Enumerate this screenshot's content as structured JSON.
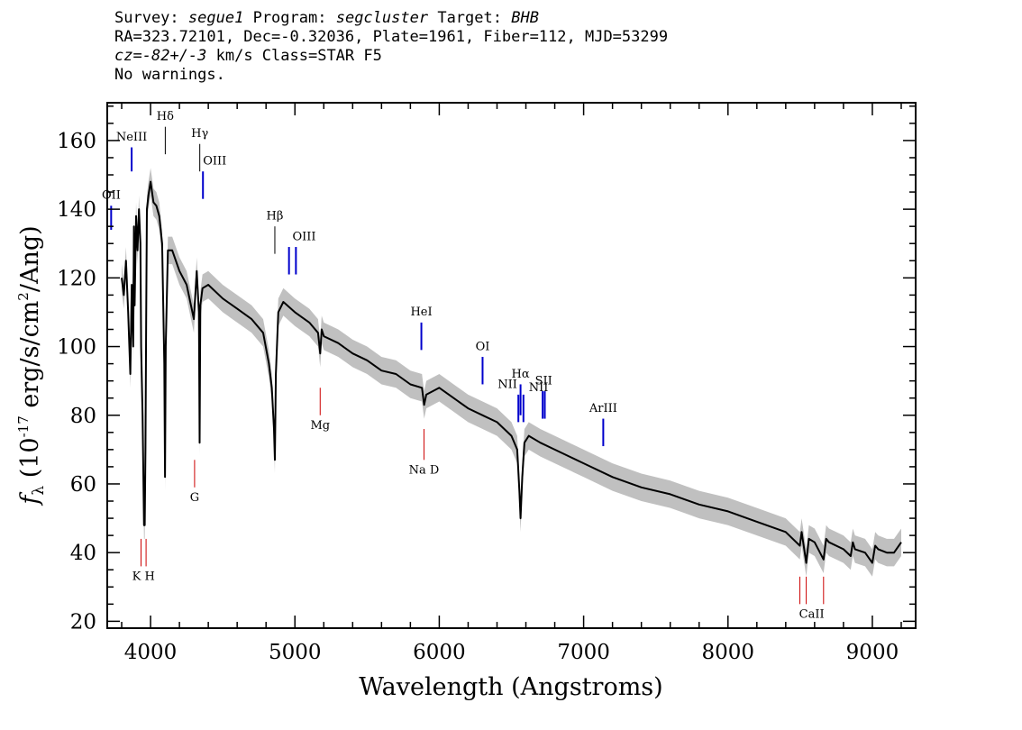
{
  "header": {
    "survey_label": "Survey:",
    "survey": "segue1",
    "program_label": "Program:",
    "program": "segcluster",
    "target_label": "Target:",
    "target": "BHB",
    "line2": "RA=323.72101, Dec=-0.32036, Plate=1961, Fiber=112, MJD=53299",
    "cz_var": "cz",
    "cz_eq": "=",
    "cz_val": "-82+/-3",
    "cz_rest": " km/s Class=STAR F5",
    "warnings": "No warnings."
  },
  "colors": {
    "emission": "#0000cc",
    "absorption": "#cc0000",
    "balmer": "#000000",
    "spectrum": "#000000",
    "error": "#c0c0c0"
  },
  "chart_data": {
    "type": "line",
    "xlabel": "Wavelength (Angstroms)",
    "ylabel_prefix": "f",
    "ylabel_sub": "λ",
    "ylabel_rest": " (10",
    "ylabel_exp": "-17",
    "ylabel_units": " erg/s/cm",
    "ylabel_sq": "2",
    "ylabel_end": "/Ang)",
    "xlim": [
      3700,
      9300
    ],
    "ylim": [
      18,
      171
    ],
    "xticks": [
      4000,
      5000,
      6000,
      7000,
      8000,
      9000
    ],
    "xtick_labels": [
      "4000",
      "5000",
      "6000",
      "7000",
      "8000",
      "9000"
    ],
    "yticks": [
      20,
      40,
      60,
      80,
      100,
      120,
      140,
      160
    ],
    "ytick_labels": [
      "20",
      "40",
      "60",
      "80",
      "100",
      "120",
      "140",
      "160"
    ],
    "series": [
      {
        "kind": "flux",
        "x": [
          3800,
          3815,
          3830,
          3845,
          3860,
          3870,
          3880,
          3885,
          3890,
          3900,
          3910,
          3920,
          3930,
          3935,
          3945,
          3955,
          3960,
          3965,
          3970,
          3975,
          3985,
          4000,
          4020,
          4040,
          4060,
          4080,
          4095,
          4100,
          4105,
          4120,
          4150,
          4200,
          4250,
          4300,
          4320,
          4335,
          4340,
          4345,
          4360,
          4400,
          4500,
          4600,
          4700,
          4780,
          4820,
          4840,
          4855,
          4861,
          4868,
          4885,
          4920,
          5000,
          5100,
          5160,
          5175,
          5185,
          5200,
          5300,
          5400,
          5500,
          5600,
          5700,
          5800,
          5880,
          5895,
          5910,
          6000,
          6100,
          6200,
          6300,
          6400,
          6500,
          6540,
          6555,
          6563,
          6575,
          6590,
          6620,
          6700,
          6800,
          7000,
          7200,
          7400,
          7600,
          7800,
          8000,
          8200,
          8400,
          8498,
          8510,
          8542,
          8560,
          8600,
          8662,
          8680,
          8700,
          8800,
          8850,
          8865,
          8880,
          8950,
          9000,
          9020,
          9040,
          9100,
          9150,
          9200
        ],
        "y": [
          120,
          115,
          125,
          110,
          92,
          118,
          100,
          135,
          112,
          138,
          128,
          140,
          130,
          100,
          80,
          48,
          48,
          70,
          108,
          140,
          144,
          148,
          142,
          141,
          138,
          130,
          95,
          62,
          100,
          128,
          128,
          122,
          118,
          108,
          122,
          110,
          72,
          112,
          117,
          118,
          114,
          111,
          108,
          104,
          95,
          88,
          76,
          67,
          92,
          110,
          113,
          110,
          107,
          104,
          98,
          105,
          103,
          101,
          98,
          96,
          93,
          92,
          89,
          88,
          83,
          86,
          88,
          85,
          82,
          80,
          78,
          74,
          70,
          58,
          50,
          62,
          72,
          74,
          72,
          70,
          66,
          62,
          59,
          57,
          54,
          52,
          49,
          46,
          42,
          46,
          37,
          44,
          43,
          38,
          44,
          43,
          41,
          39,
          43,
          41,
          40,
          37,
          42,
          41,
          40,
          40,
          43
        ]
      },
      {
        "kind": "error",
        "offset": 4
      }
    ],
    "emission_lines": [
      {
        "label": "OII",
        "x": 3727,
        "y_top": 134,
        "y_bot": 141
      },
      {
        "label": "NeIII",
        "x": 3869,
        "y_top": 151,
        "y_bot": 158
      },
      {
        "label": "OIII",
        "x": 4363,
        "y_top": 143,
        "y_bot": 151
      },
      {
        "label": "OIII",
        "x": 4959,
        "y_top": 121,
        "y_bot": 129
      },
      {
        "label": "OIII",
        "x": 5007,
        "y_top": 121,
        "y_bot": 129
      },
      {
        "label": "HeI",
        "x": 5876,
        "y_top": 99,
        "y_bot": 107
      },
      {
        "label": "OI",
        "x": 6300,
        "y_top": 89,
        "y_bot": 97
      },
      {
        "label": "NII",
        "x": 6548,
        "y_top": 78,
        "y_bot": 86
      },
      {
        "label": "Hα",
        "x": 6563,
        "y_top": 80,
        "y_bot": 89
      },
      {
        "label": "NII",
        "x": 6583,
        "y_top": 78,
        "y_bot": 86
      },
      {
        "label": "SII",
        "x": 6716,
        "y_top": 79,
        "y_bot": 87
      },
      {
        "label": "SII",
        "x": 6731,
        "y_top": 79,
        "y_bot": 87
      },
      {
        "label": "ArIII",
        "x": 7136,
        "y_top": 71,
        "y_bot": 79
      }
    ],
    "balmer_lines": [
      {
        "label": "Hδ",
        "x": 4102,
        "y_top": 156,
        "y_bot": 164
      },
      {
        "label": "Hγ",
        "x": 4341,
        "y_top": 151,
        "y_bot": 159
      },
      {
        "label": "Hβ",
        "x": 4861,
        "y_top": 127,
        "y_bot": 135
      }
    ],
    "absorption_lines": [
      {
        "label": "K",
        "x": 3934,
        "y_top": 36,
        "y_bot": 44
      },
      {
        "label": "H",
        "x": 3969,
        "y_top": 36,
        "y_bot": 44
      },
      {
        "label": "G",
        "x": 4305,
        "y_top": 59,
        "y_bot": 67
      },
      {
        "label": "Mg",
        "x": 5175,
        "y_top": 80,
        "y_bot": 88
      },
      {
        "label": "Na D",
        "x": 5894,
        "y_top": 67,
        "y_bot": 76
      },
      {
        "label": "CaII",
        "x": 8498,
        "y_top": 25,
        "y_bot": 33
      },
      {
        "label": "CaII",
        "x": 8542,
        "y_top": 25,
        "y_bot": 33
      },
      {
        "label": "CaII",
        "x": 8662,
        "y_top": 25,
        "y_bot": 33
      }
    ],
    "line_labels": [
      {
        "text": "OII",
        "x": 3728,
        "y": 143,
        "anchor": "middle"
      },
      {
        "text": "NeIII",
        "x": 3869,
        "y": 160,
        "anchor": "middle"
      },
      {
        "text": "Hδ",
        "x": 4102,
        "y": 166,
        "anchor": "middle"
      },
      {
        "text": "Hγ",
        "x": 4341,
        "y": 161,
        "anchor": "middle"
      },
      {
        "text": "OIII",
        "x": 4363,
        "y": 153,
        "anchor": "start"
      },
      {
        "text": "Hβ",
        "x": 4861,
        "y": 137,
        "anchor": "middle"
      },
      {
        "text": "OIII",
        "x": 4983,
        "y": 131,
        "anchor": "start"
      },
      {
        "text": "HeI",
        "x": 5876,
        "y": 109,
        "anchor": "middle"
      },
      {
        "text": "OI",
        "x": 6300,
        "y": 99,
        "anchor": "middle"
      },
      {
        "text": "NII",
        "x": 6540,
        "y": 88,
        "anchor": "end"
      },
      {
        "text": "Hα",
        "x": 6563,
        "y": 91,
        "anchor": "middle"
      },
      {
        "text": "NII",
        "x": 6620,
        "y": 87,
        "anchor": "start"
      },
      {
        "text": "SII",
        "x": 6723,
        "y": 89,
        "anchor": "middle"
      },
      {
        "text": "ArIII",
        "x": 7136,
        "y": 81,
        "anchor": "middle"
      },
      {
        "text": "K H",
        "x": 3951,
        "y": 32,
        "anchor": "middle"
      },
      {
        "text": "G",
        "x": 4305,
        "y": 55,
        "anchor": "middle"
      },
      {
        "text": "Mg",
        "x": 5175,
        "y": 76,
        "anchor": "middle"
      },
      {
        "text": "Na  D",
        "x": 5894,
        "y": 63,
        "anchor": "middle"
      },
      {
        "text": "CaII",
        "x": 8580,
        "y": 21,
        "anchor": "middle"
      }
    ]
  }
}
